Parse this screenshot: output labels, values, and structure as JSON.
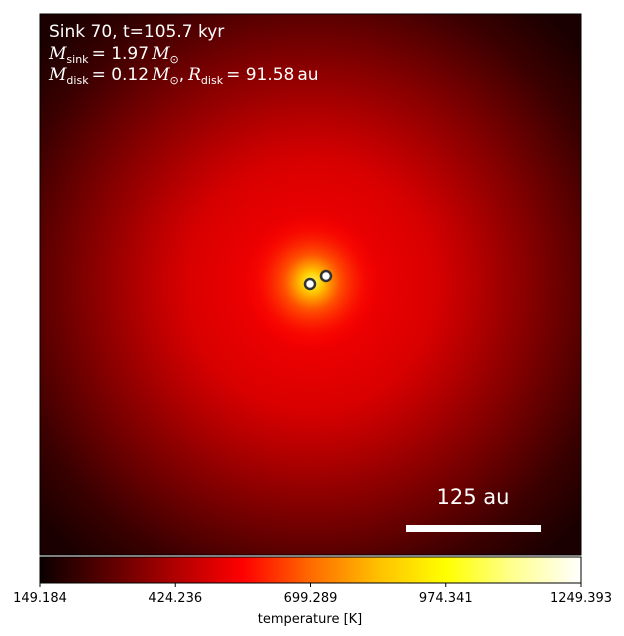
{
  "info": {
    "line1": "Sink 70, t=105.7 kyr",
    "m_symbol": "M",
    "sink_sub": "sink",
    "sink_value": "= 1.97",
    "sun_symbol": "M",
    "sun_sub": "⊙",
    "disk_sub": "disk",
    "disk_mass_value": "= 0.12",
    "comma": ",",
    "r_symbol": "R",
    "disk_radius_value": "= 91.58",
    "au_unit": "au"
  },
  "scale_bar": {
    "label": "125 au",
    "color": "#ffffff"
  },
  "map": {
    "colormap": "hot",
    "background": "#2a0000",
    "glow_color": "#ff0000"
  },
  "sinks": [
    {
      "name": "sink-left",
      "color": "#ffffff",
      "outline": "#333333"
    },
    {
      "name": "sink-right",
      "color": "#ffffff",
      "outline": "#333333"
    }
  ],
  "colorbar": {
    "label": "temperature [K]",
    "ticks": [
      "149.184",
      "424.236",
      "699.289",
      "974.341",
      "1249.393"
    ],
    "stops": [
      "#0b0000",
      "#5a0000",
      "#b00000",
      "#ff0000",
      "#ff6a00",
      "#ffc000",
      "#ffff00",
      "#ffff90",
      "#ffffff"
    ]
  }
}
